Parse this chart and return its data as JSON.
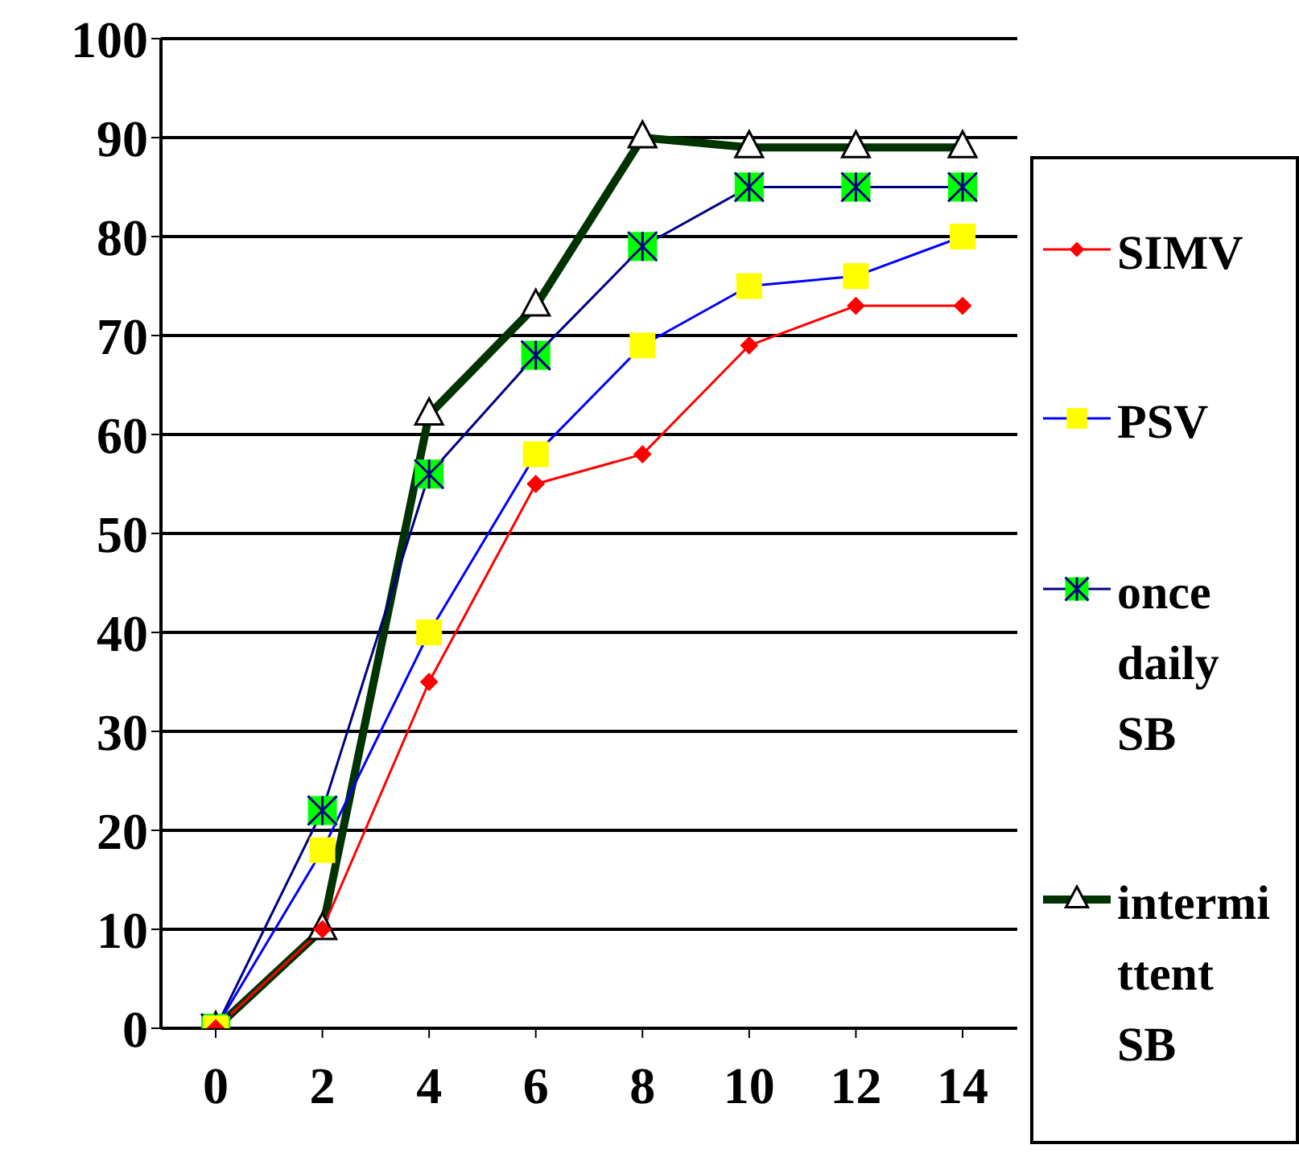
{
  "chart_data": {
    "type": "line",
    "categories": [
      "0",
      "2",
      "4",
      "6",
      "8",
      "10",
      "12",
      "14"
    ],
    "series": [
      {
        "name": "SIMV",
        "color": "#ff0000",
        "marker": "diamond",
        "colors": [
          "#ff0000",
          "#ff0000",
          "#ff0000",
          "#ff0000",
          "#ff0000",
          "#ff0000",
          "#ff0000",
          "#ff0000"
        ],
        "values": [
          0,
          10,
          35,
          55,
          58,
          69,
          73,
          73
        ]
      },
      {
        "name": "PSV",
        "color": "#0000ff",
        "marker": "square",
        "colors": [
          "#ffff00",
          "#ffff00",
          "#ffff00",
          "#ffff00",
          "#ffff00",
          "#ffff00",
          "#ffff00",
          "#ffff00"
        ],
        "values": [
          0,
          18,
          40,
          58,
          69,
          75,
          76,
          80
        ]
      },
      {
        "name": "once daily SB",
        "color": "#000080",
        "marker": "square",
        "colors": [
          "#00ff00",
          "#00ff00",
          "#00ff00",
          "#00ff00",
          "#00ff00",
          "#00ff00",
          "#00ff00",
          "#00ff00"
        ],
        "values": [
          0,
          22,
          56,
          68,
          79,
          85,
          85,
          85
        ]
      },
      {
        "name": "intermittent SB",
        "color": "#003300",
        "marker": "triangle",
        "colors": [
          "#ffffff",
          "#ffffff",
          "#ffffff",
          "#ffffff",
          "#ffffff",
          "#ffffff",
          "#ffffff",
          "#ffffff"
        ],
        "values": [
          0,
          10,
          62,
          73,
          90,
          89,
          89,
          89
        ]
      }
    ],
    "ylim": [
      0,
      100
    ],
    "yticks": [
      0,
      10,
      20,
      30,
      40,
      50,
      60,
      70,
      80,
      90,
      100
    ],
    "grid": "y",
    "legend": "right",
    "line_style": "solid"
  }
}
